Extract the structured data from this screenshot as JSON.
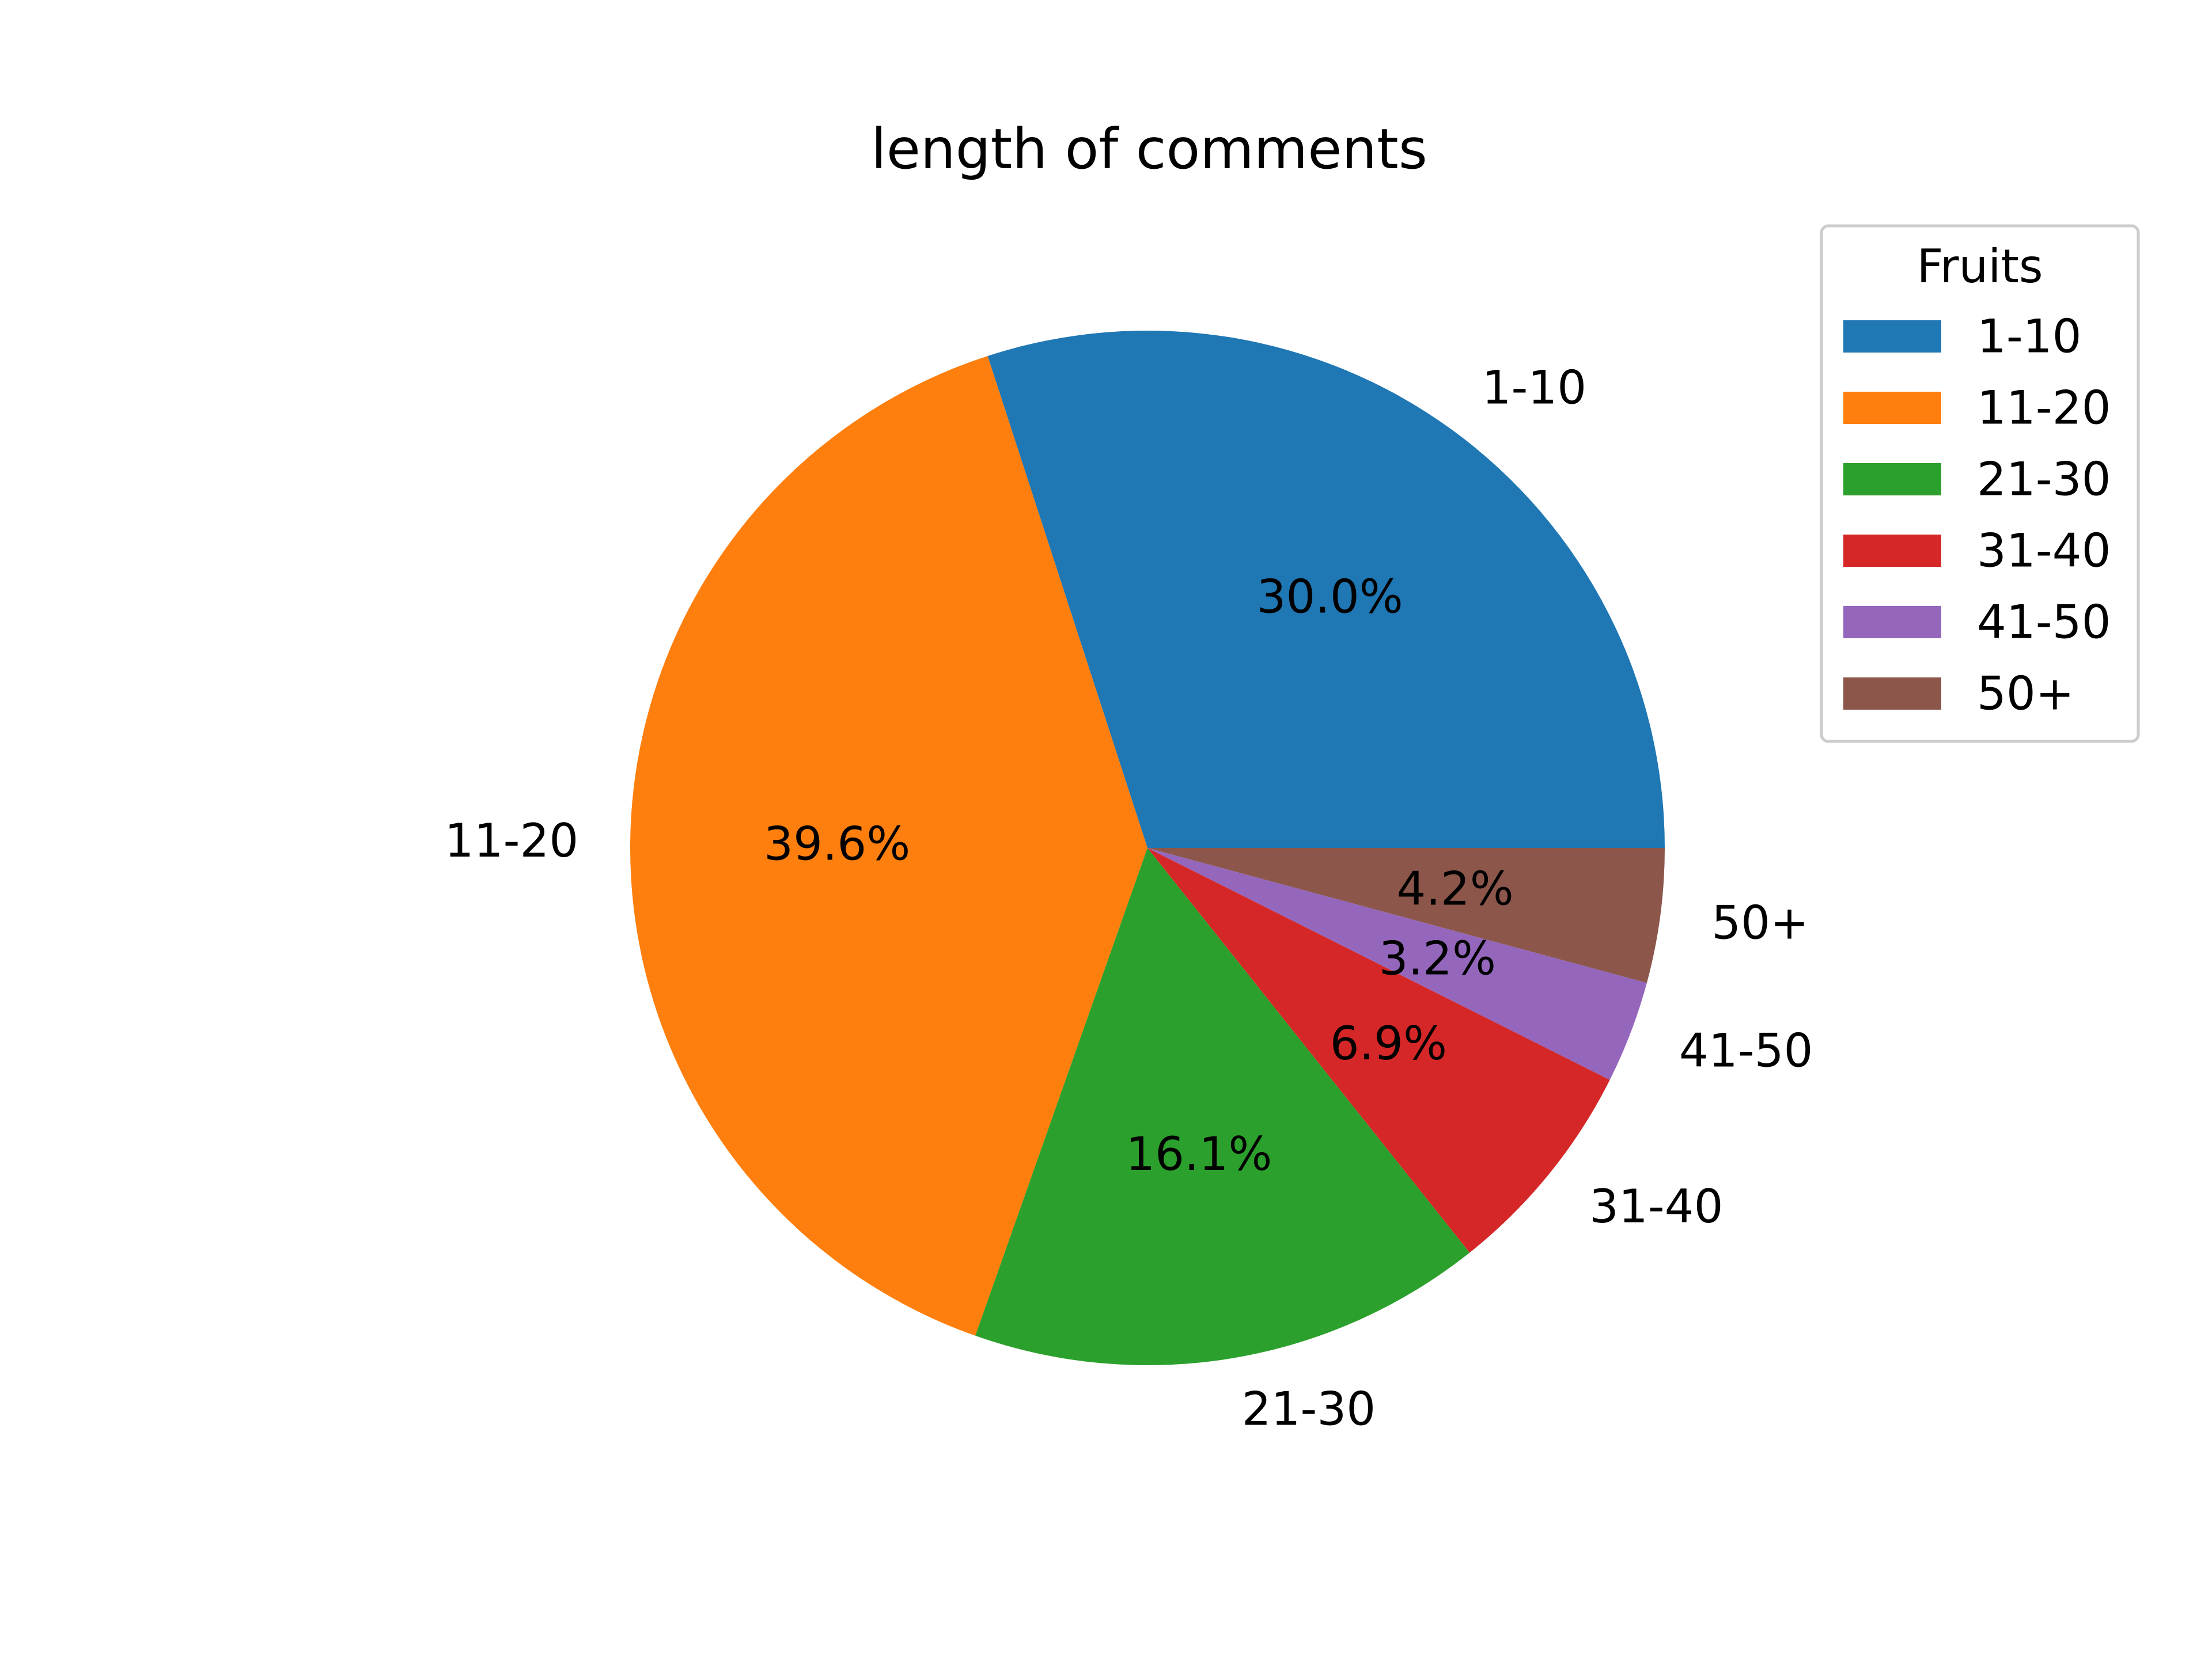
{
  "chart_data": {
    "type": "pie",
    "title": "length of comments",
    "categories": [
      "1-10",
      "11-20",
      "21-30",
      "31-40",
      "41-50",
      "50+"
    ],
    "values": [
      30.0,
      39.6,
      16.1,
      6.9,
      3.2,
      4.2
    ],
    "percent_labels": [
      "30.0%",
      "39.6%",
      "16.1%",
      "6.9%",
      "3.2%",
      "4.2%"
    ],
    "colors": [
      "#1f77b4",
      "#ff7f0e",
      "#2ca02c",
      "#d62728",
      "#9467bd",
      "#8c564b"
    ],
    "start_angle_deg": 0,
    "direction": "counterclockwise",
    "legend": {
      "title": "Fruits",
      "placement": "upper-right"
    }
  }
}
